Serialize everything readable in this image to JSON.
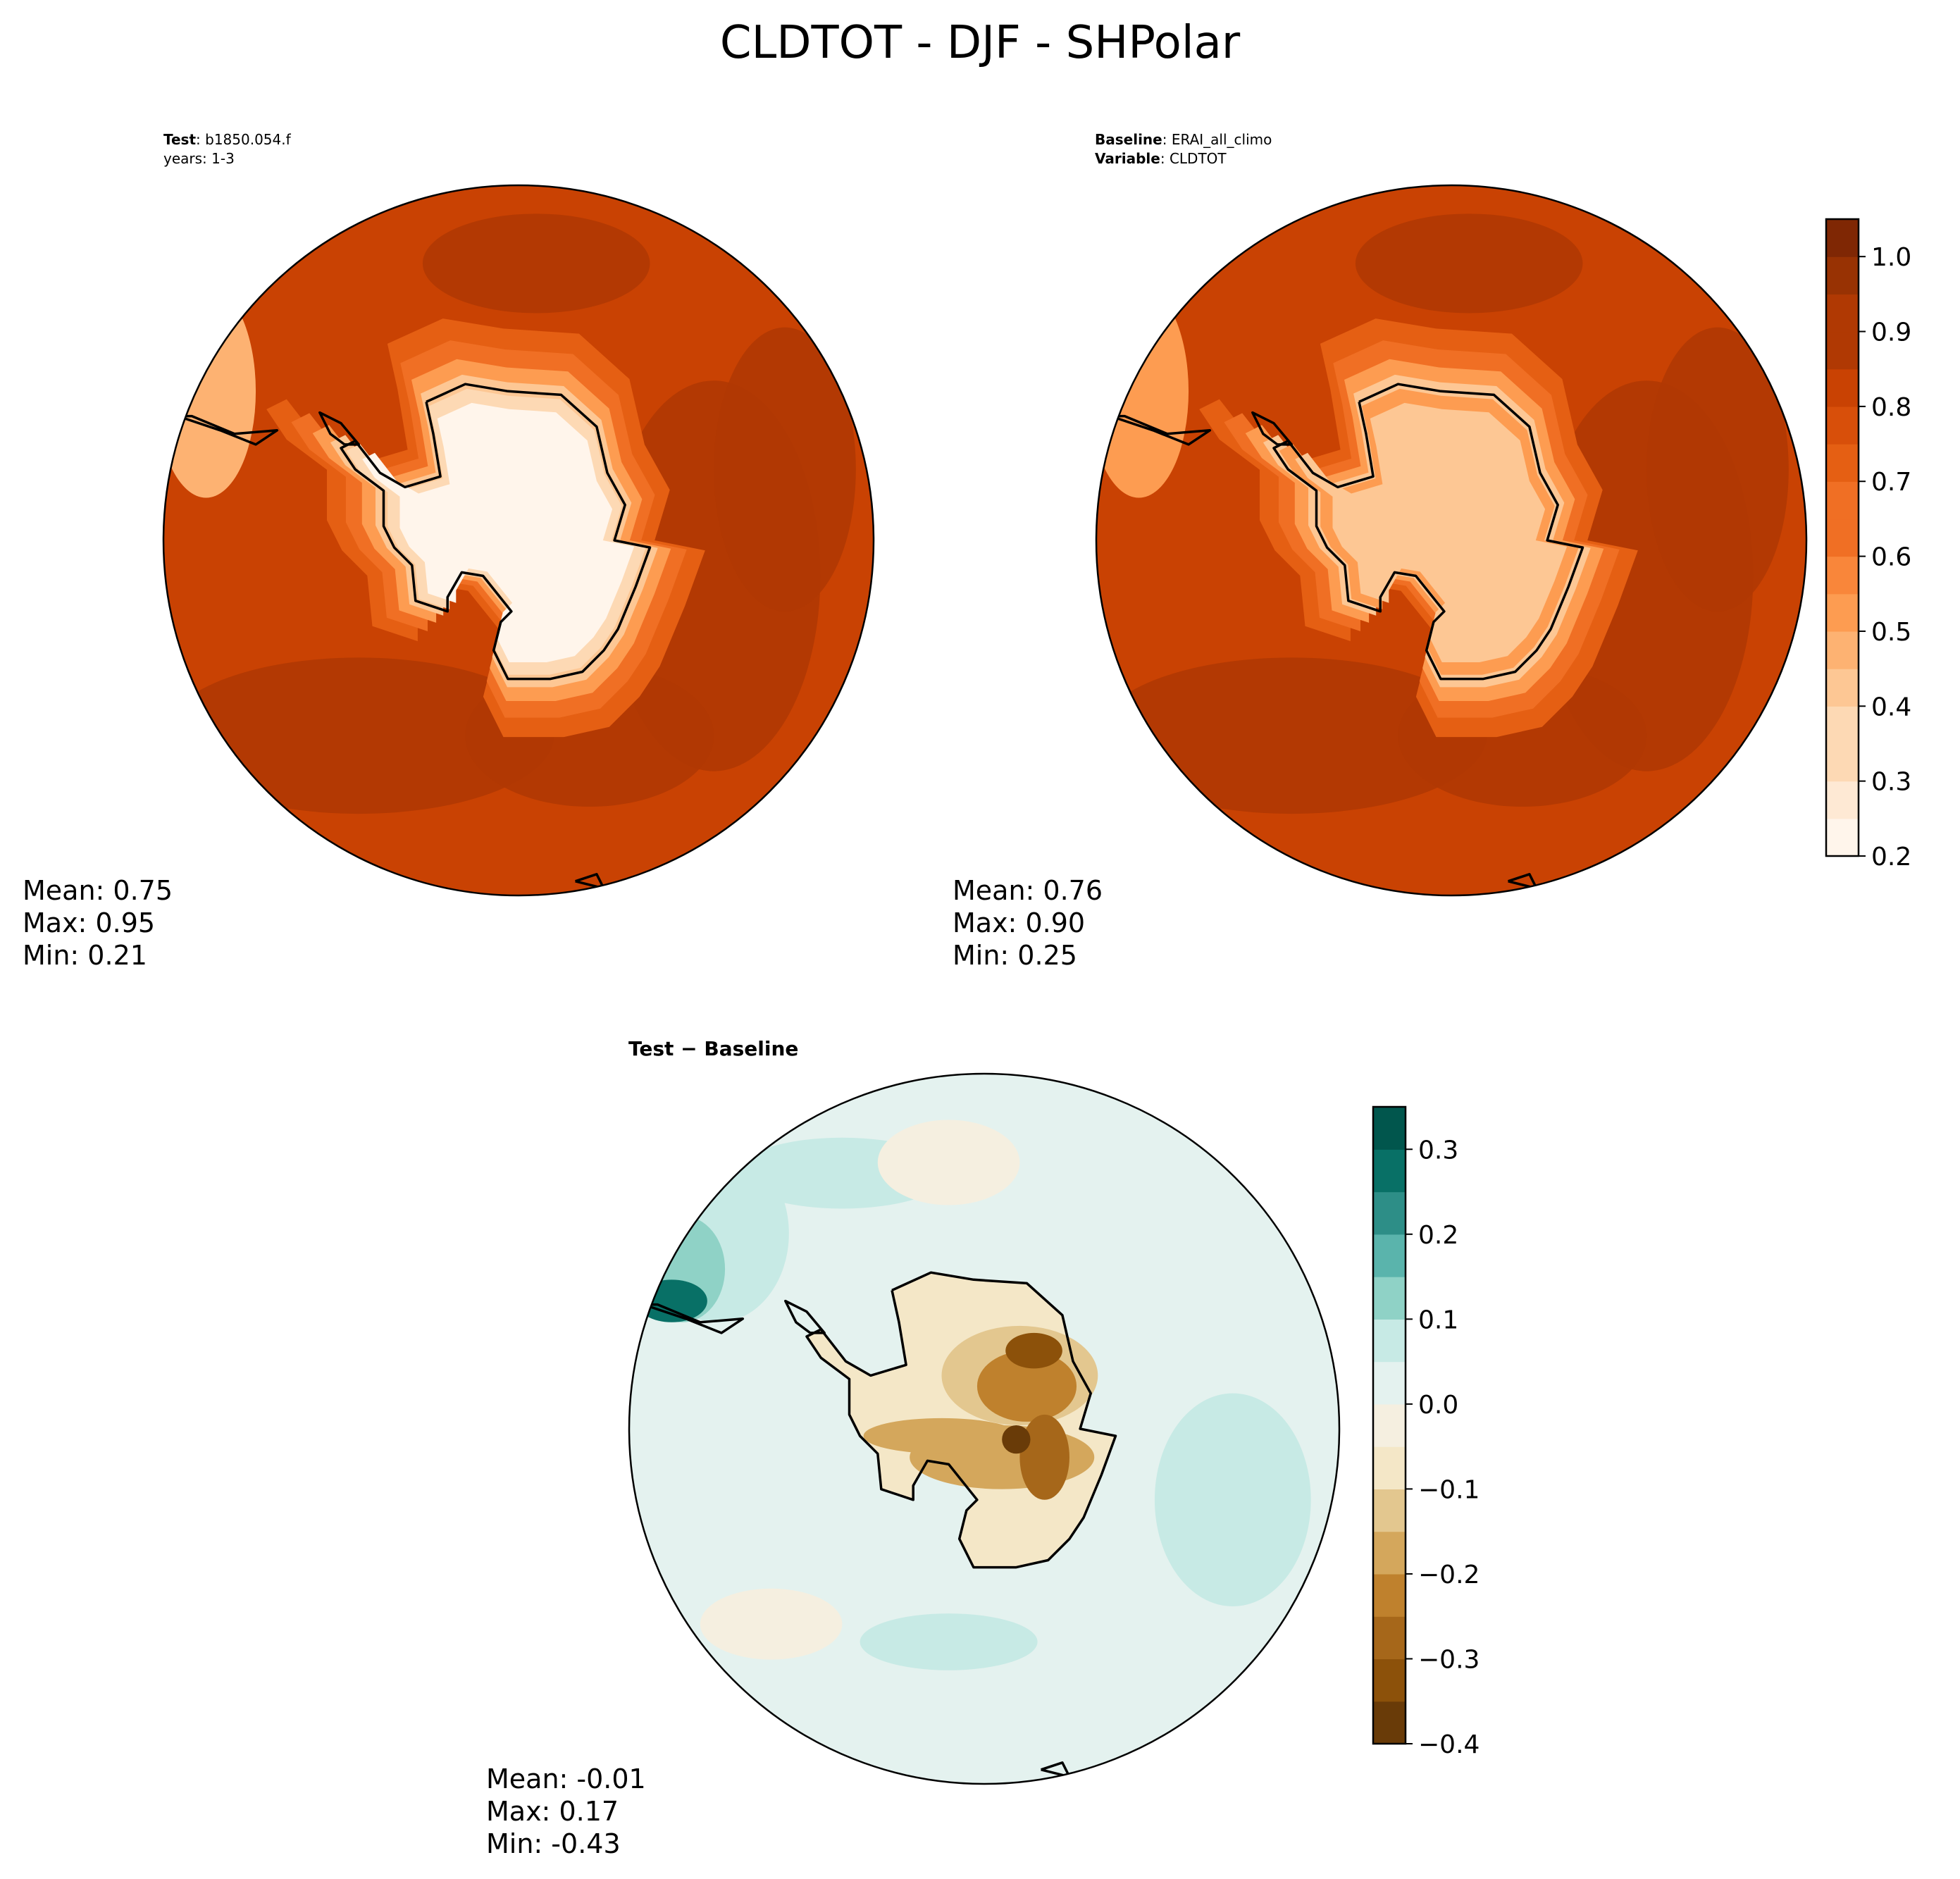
{
  "chart_data": [
    {
      "type": "heatmap",
      "figure_title": "CLDTOT - DJF - SHPolar",
      "panel": "test",
      "title_lines": [
        {
          "bold": "Test",
          "sep": ": ",
          "text": "b1850.054.f"
        },
        {
          "bold": "",
          "sep": "",
          "text": "years: 1-3"
        }
      ],
      "stats": {
        "mean_label": "Mean:  0.75",
        "max_label": "Max:  0.95",
        "min_label": "Min:  0.21",
        "mean": 0.75,
        "max": 0.95,
        "min": 0.21
      },
      "field": {
        "cap": 0.22,
        "ocean": [
          0.84,
          0.9
        ],
        "tip": 0.45
      },
      "colors": {
        "levels": [
          0.2,
          0.25,
          0.3,
          0.35,
          0.4,
          0.45,
          0.5,
          0.55,
          0.6,
          0.65,
          0.7,
          0.75,
          0.8,
          0.85,
          0.9,
          0.95,
          1.0,
          1.05
        ]
      }
    },
    {
      "type": "heatmap",
      "panel": "baseline",
      "title_lines": [
        {
          "bold": "Baseline",
          "sep": ": ",
          "text": "ERAI_all_climo"
        },
        {
          "bold": "Variable",
          "sep": ": ",
          "text": "CLDTOT"
        }
      ],
      "stats": {
        "mean_label": "Mean:  0.76",
        "max_label": "Max:  0.90",
        "min_label": "Min:  0.25",
        "mean": 0.76,
        "max": 0.9,
        "min": 0.25
      },
      "field": {
        "cap": 0.4,
        "ocean": [
          0.82,
          0.86
        ],
        "tip": 0.5
      },
      "colorbar": {
        "ticks": [
          "0.2",
          "0.3",
          "0.4",
          "0.5",
          "0.6",
          "0.7",
          "0.8",
          "0.9",
          "1.0"
        ],
        "tick_values": [
          0.2,
          0.3,
          0.4,
          0.5,
          0.6,
          0.7,
          0.8,
          0.9,
          1.0
        ],
        "range": [
          0.2,
          1.05
        ]
      }
    },
    {
      "type": "heatmap",
      "panel": "difference",
      "title_lines": [
        {
          "bold": "Test − Baseline",
          "sep": "",
          "text": ""
        }
      ],
      "stats": {
        "mean_label": "Mean: -0.01",
        "max_label": "Max:  0.17",
        "min_label": "Min: -0.43",
        "mean": -0.01,
        "max": 0.17,
        "min": -0.43
      },
      "colorbar": {
        "ticks": [
          "0.3",
          "0.2",
          "0.1",
          "0.0",
          "−0.1",
          "−0.2",
          "−0.3",
          "−0.4"
        ],
        "tick_values": [
          0.3,
          0.2,
          0.1,
          0.0,
          -0.1,
          -0.2,
          -0.3,
          -0.4
        ],
        "range": [
          -0.4,
          0.35
        ]
      }
    }
  ],
  "colormaps": {
    "oranges": [
      "#fff5eb",
      "#fee9d4",
      "#fdd9b4",
      "#fdc794",
      "#fdb272",
      "#fd9c51",
      "#f9863a",
      "#f06f24",
      "#e55f13",
      "#d84f0a",
      "#c94203",
      "#b03903",
      "#983203",
      "#7f2704"
    ],
    "difference": [
      "#693b08",
      "#8c510a",
      "#a6671a",
      "#bf812d",
      "#d4a75c",
      "#e3c78f",
      "#f4e7c7",
      "#f5efe0",
      "#e4f2ef",
      "#c7eae5",
      "#8fd2c6",
      "#5ab4ac",
      "#2d8e87",
      "#087066",
      "#01564d"
    ]
  }
}
